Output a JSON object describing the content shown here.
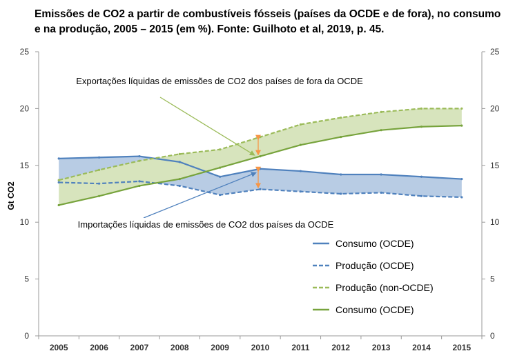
{
  "chart_data": {
    "type": "line",
    "title": "Emissões de CO2 a partir de combustíveis fósseis (países da OCDE e de fora), no consumo e na produção, 2005 – 2015 (em %). Fonte: Guilhoto et al, 2019, p. 45.",
    "xlabel": "",
    "ylabel": "Gt CO2",
    "ylim": [
      0,
      25
    ],
    "yticks": [
      "0",
      "5",
      "10",
      "15",
      "20",
      "25"
    ],
    "categories": [
      "2005",
      "2006",
      "2007",
      "2008",
      "2009",
      "2010",
      "2011",
      "2012",
      "2013",
      "2014",
      "2015"
    ],
    "series": [
      {
        "name": "Consumo (OCDE)",
        "color": "#4f81bd",
        "dash": "solid",
        "values": [
          15.6,
          15.7,
          15.8,
          15.3,
          14.0,
          14.7,
          14.5,
          14.2,
          14.2,
          14.0,
          13.8
        ]
      },
      {
        "name": "Produção (OCDE)",
        "color": "#4f81bd",
        "dash": "dashed",
        "values": [
          13.5,
          13.4,
          13.6,
          13.2,
          12.4,
          12.9,
          12.7,
          12.5,
          12.6,
          12.3,
          12.2
        ]
      },
      {
        "name": "Produção (non-OCDE)",
        "color": "#9bbb59",
        "dash": "dashed",
        "values": [
          13.7,
          14.6,
          15.4,
          16.0,
          16.4,
          17.5,
          18.6,
          19.2,
          19.7,
          20.0,
          20.0
        ]
      },
      {
        "name": "Consumo (OCDE)",
        "color": "#77a33c",
        "dash": "solid",
        "values": [
          11.5,
          12.3,
          13.2,
          13.8,
          14.8,
          15.8,
          16.8,
          17.5,
          18.1,
          18.4,
          18.5
        ]
      }
    ],
    "annotations": [
      "Exportações líquidas de emissões de CO2 dos países de fora da OCDE",
      "Importações líquidas de emissões de CO2 dos países da OCDE"
    ],
    "colors": {
      "blue_fill": "#b8cce4",
      "green_fill": "#d7e4bd",
      "arrow_orange": "#f79646",
      "arrow_blue": "#4f81bd",
      "arrow_green": "#9bbb59",
      "axis": "#999999"
    },
    "legend_position": "bottom-right"
  }
}
